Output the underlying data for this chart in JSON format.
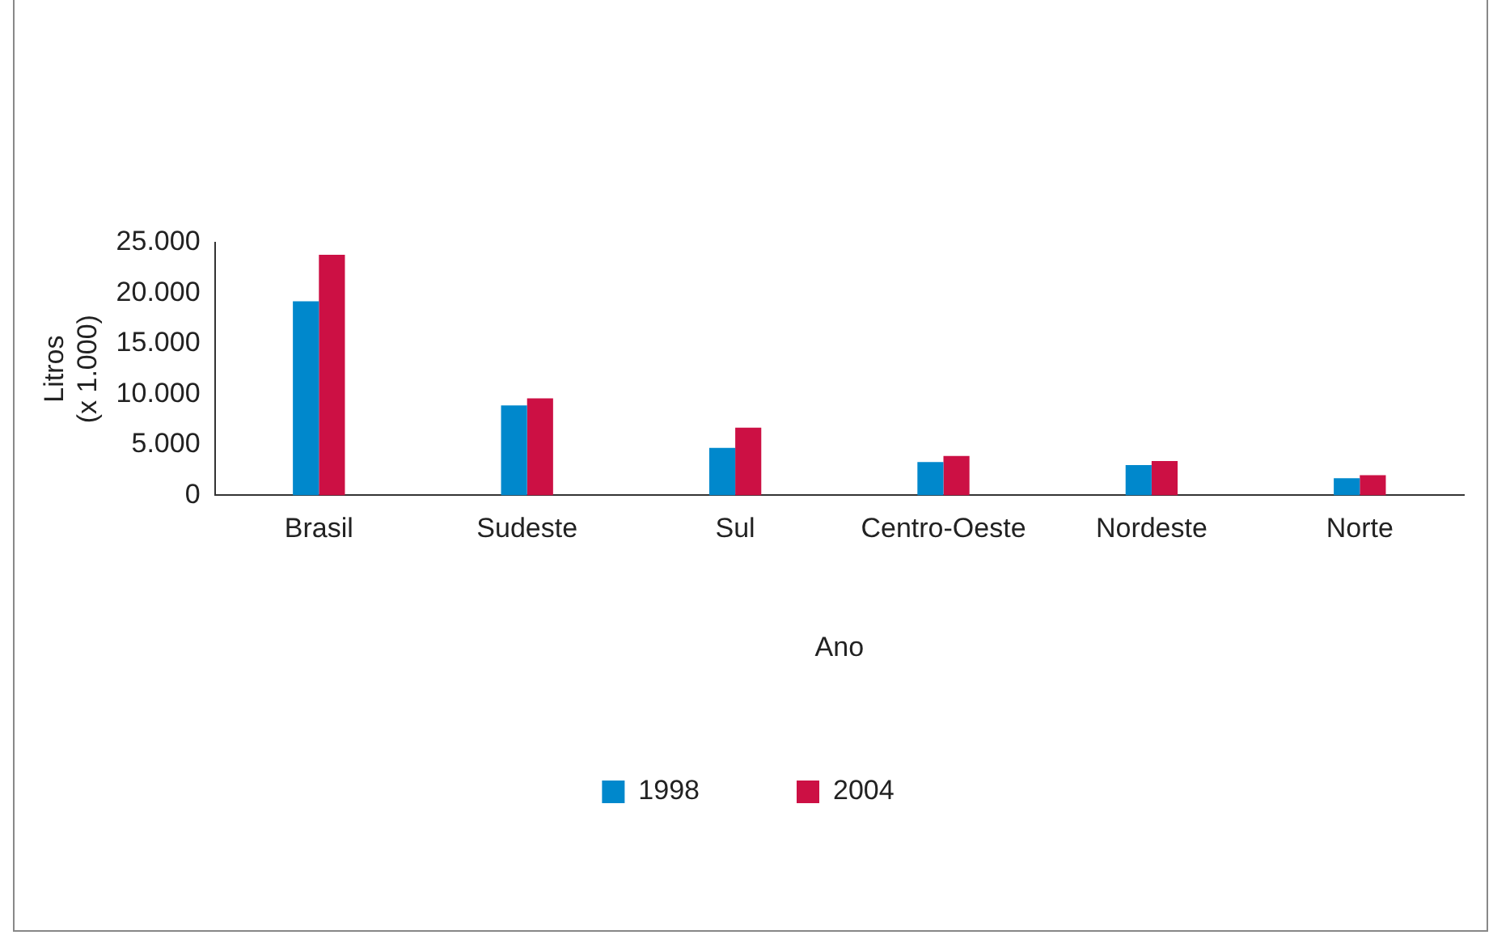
{
  "chart_data": {
    "type": "bar",
    "xlabel": "Ano",
    "ylabel": [
      "Litros",
      "(x 1.000)"
    ],
    "categories": [
      "Brasil",
      "Sudeste",
      "Sul",
      "Centro-Oeste",
      "Nordeste",
      "Norte"
    ],
    "series": [
      {
        "name": "1998",
        "color": "#0088cc",
        "values": [
          19200,
          8900,
          4700,
          3300,
          3000,
          1700
        ]
      },
      {
        "name": "2004",
        "color": "#cc1044",
        "values": [
          23800,
          9600,
          6700,
          3900,
          3400,
          2000
        ]
      }
    ],
    "ylim": [
      0,
      25000
    ],
    "yticks": [
      {
        "value": 0,
        "label": "0"
      },
      {
        "value": 5000,
        "label": "5.000"
      },
      {
        "value": 10000,
        "label": "10.000"
      },
      {
        "value": 15000,
        "label": "15.000"
      },
      {
        "value": 20000,
        "label": "20.000"
      },
      {
        "value": 25000,
        "label": "25.000"
      }
    ],
    "grid": false,
    "legend": "bottom"
  }
}
